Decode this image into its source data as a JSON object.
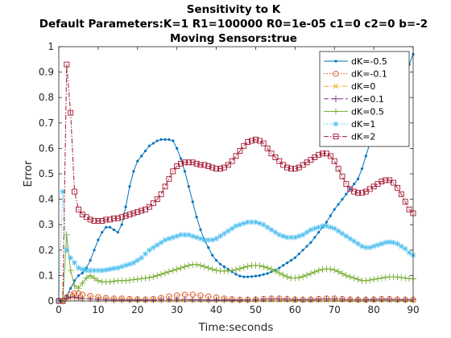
{
  "chart_data": {
    "type": "line",
    "title_lines": [
      "Sensitivity to K",
      "Default Parameters:K=1 R1=100000 R0=1e-05 c1=0 c2=0 b=-2",
      "Moving Sensors:true"
    ],
    "xlabel": "Time:seconds",
    "ylabel": "Error",
    "xlim": [
      0,
      90
    ],
    "ylim": [
      0,
      1
    ],
    "xticks": [
      0,
      10,
      20,
      30,
      40,
      50,
      60,
      70,
      80,
      90
    ],
    "yticks": [
      0,
      0.1,
      0.2,
      0.3,
      0.4,
      0.5,
      0.6,
      0.7,
      0.8,
      0.9,
      1
    ],
    "ytick_labels": [
      "0",
      "0.1",
      "0.2",
      "0.3",
      "0.4",
      "0.5",
      "0.6",
      "0.7",
      "0.8",
      "0.9",
      "1"
    ],
    "grid": false,
    "legend_position": "top-right",
    "series": [
      {
        "name": "dK=-0.5",
        "color": "#0072BD",
        "dash": "solid",
        "marker": "dot",
        "x": [
          0,
          1,
          2,
          3,
          4,
          5,
          6,
          7,
          8,
          9,
          10,
          11,
          12,
          13,
          14,
          15,
          16,
          17,
          18,
          19,
          20,
          21,
          22,
          23,
          24,
          25,
          26,
          27,
          28,
          29,
          30,
          31,
          32,
          33,
          34,
          35,
          36,
          37,
          38,
          39,
          40,
          41,
          42,
          43,
          44,
          45,
          46,
          47,
          48,
          49,
          50,
          51,
          52,
          53,
          54,
          55,
          56,
          57,
          58,
          59,
          60,
          61,
          62,
          63,
          64,
          65,
          66,
          67,
          68,
          69,
          70,
          71,
          72,
          73,
          74,
          75,
          76,
          77,
          78,
          79,
          80,
          81,
          82,
          83,
          84,
          85,
          86,
          87,
          88,
          89,
          90
        ],
        "y": [
          0,
          0,
          0.02,
          0.05,
          0.08,
          0.1,
          0.11,
          0.13,
          0.16,
          0.2,
          0.24,
          0.27,
          0.29,
          0.29,
          0.28,
          0.27,
          0.3,
          0.37,
          0.45,
          0.51,
          0.55,
          0.57,
          0.59,
          0.61,
          0.62,
          0.63,
          0.635,
          0.635,
          0.635,
          0.63,
          0.6,
          0.56,
          0.51,
          0.45,
          0.39,
          0.33,
          0.28,
          0.24,
          0.21,
          0.18,
          0.16,
          0.145,
          0.135,
          0.125,
          0.115,
          0.105,
          0.098,
          0.095,
          0.095,
          0.096,
          0.098,
          0.1,
          0.104,
          0.108,
          0.115,
          0.12,
          0.13,
          0.14,
          0.15,
          0.16,
          0.17,
          0.185,
          0.2,
          0.215,
          0.23,
          0.25,
          0.27,
          0.29,
          0.31,
          0.335,
          0.36,
          0.38,
          0.4,
          0.42,
          0.44,
          0.46,
          0.48,
          0.52,
          0.57,
          0.62,
          0.67,
          0.72,
          0.76,
          0.78,
          0.8,
          0.81,
          0.82,
          0.84,
          0.88,
          0.93,
          0.97
        ]
      },
      {
        "name": "dK=-0.1",
        "color": "#D95319",
        "dash": "dot",
        "marker": "circle",
        "x": [
          0,
          1,
          2,
          3,
          4,
          5,
          6,
          8,
          10,
          12,
          14,
          16,
          18,
          20,
          22,
          24,
          26,
          28,
          30,
          32,
          34,
          36,
          38,
          40,
          42,
          44,
          46,
          48,
          50,
          52,
          54,
          56,
          58,
          60,
          62,
          64,
          66,
          68,
          70,
          72,
          74,
          76,
          78,
          80,
          82,
          84,
          86,
          88,
          90
        ],
        "y": [
          0,
          0,
          0.015,
          0.025,
          0.03,
          0.03,
          0.025,
          0.02,
          0.015,
          0.012,
          0.01,
          0.01,
          0.008,
          0.007,
          0.006,
          0.008,
          0.012,
          0.018,
          0.022,
          0.025,
          0.025,
          0.022,
          0.018,
          0.014,
          0.01,
          0.007,
          0.005,
          0.005,
          0.006,
          0.008,
          0.01,
          0.01,
          0.008,
          0.006,
          0.005,
          0.006,
          0.008,
          0.01,
          0.01,
          0.008,
          0.006,
          0.005,
          0.005,
          0.006,
          0.008,
          0.008,
          0.006,
          0.005,
          0.005
        ]
      },
      {
        "name": "dK=0",
        "color": "#EDB120",
        "dash": "dashdot",
        "marker": "x",
        "x": [
          0,
          1,
          2,
          3,
          4,
          5,
          6,
          8,
          10,
          12,
          14,
          16,
          18,
          20,
          22,
          24,
          26,
          28,
          30,
          32,
          34,
          36,
          38,
          40,
          42,
          44,
          46,
          48,
          50,
          52,
          54,
          56,
          58,
          60,
          62,
          64,
          66,
          68,
          70,
          72,
          74,
          76,
          78,
          80,
          82,
          84,
          86,
          88,
          90
        ],
        "y": [
          0,
          0,
          0.01,
          0.015,
          0.015,
          0.012,
          0.01,
          0.008,
          0.006,
          0.005,
          0.004,
          0.004,
          0.004,
          0.003,
          0.003,
          0.003,
          0.003,
          0.003,
          0.003,
          0.003,
          0.003,
          0.003,
          0.003,
          0.003,
          0.003,
          0.003,
          0.003,
          0.003,
          0.003,
          0.003,
          0.003,
          0.003,
          0.003,
          0.003,
          0.003,
          0.003,
          0.003,
          0.003,
          0.003,
          0.003,
          0.003,
          0.003,
          0.003,
          0.003,
          0.003,
          0.003,
          0.003,
          0.003,
          0.003
        ]
      },
      {
        "name": "dK=0.1",
        "color": "#7E2F8E",
        "dash": "dash",
        "marker": "plus",
        "x": [
          0,
          1,
          2,
          3,
          4,
          5,
          6,
          8,
          10,
          12,
          14,
          16,
          18,
          20,
          22,
          24,
          26,
          28,
          30,
          32,
          34,
          36,
          38,
          40,
          42,
          44,
          46,
          48,
          50,
          52,
          54,
          56,
          58,
          60,
          62,
          64,
          66,
          68,
          70,
          72,
          74,
          76,
          78,
          80,
          82,
          84,
          86,
          88,
          90
        ],
        "y": [
          0,
          0,
          0.01,
          0.015,
          0.015,
          0.012,
          0.01,
          0.008,
          0.006,
          0.005,
          0.004,
          0.004,
          0.004,
          0.004,
          0.004,
          0.004,
          0.005,
          0.006,
          0.006,
          0.006,
          0.005,
          0.005,
          0.004,
          0.004,
          0.004,
          0.004,
          0.004,
          0.005,
          0.006,
          0.007,
          0.008,
          0.008,
          0.007,
          0.006,
          0.006,
          0.006,
          0.007,
          0.008,
          0.008,
          0.007,
          0.006,
          0.006,
          0.006,
          0.006,
          0.007,
          0.007,
          0.006,
          0.006,
          0.006
        ]
      },
      {
        "name": "dK=0.5",
        "color": "#77AC30",
        "dash": "solid",
        "marker": "plus",
        "x": [
          0,
          1,
          2,
          3,
          4,
          5,
          6,
          7,
          8,
          9,
          10,
          11,
          12,
          13,
          14,
          15,
          16,
          17,
          18,
          19,
          20,
          21,
          22,
          23,
          24,
          25,
          26,
          27,
          28,
          29,
          30,
          31,
          32,
          33,
          34,
          35,
          36,
          37,
          38,
          39,
          40,
          41,
          42,
          43,
          44,
          45,
          46,
          47,
          48,
          49,
          50,
          51,
          52,
          53,
          54,
          55,
          56,
          57,
          58,
          59,
          60,
          61,
          62,
          63,
          64,
          65,
          66,
          67,
          68,
          69,
          70,
          71,
          72,
          73,
          74,
          75,
          76,
          77,
          78,
          79,
          80,
          81,
          82,
          83,
          84,
          85,
          86,
          87,
          88,
          89,
          90
        ],
        "y": [
          0,
          0,
          0.26,
          0.12,
          0.06,
          0.05,
          0.07,
          0.09,
          0.1,
          0.09,
          0.08,
          0.075,
          0.075,
          0.075,
          0.078,
          0.08,
          0.08,
          0.08,
          0.082,
          0.084,
          0.086,
          0.088,
          0.09,
          0.092,
          0.095,
          0.1,
          0.105,
          0.11,
          0.115,
          0.12,
          0.125,
          0.13,
          0.135,
          0.14,
          0.143,
          0.143,
          0.14,
          0.135,
          0.13,
          0.125,
          0.12,
          0.118,
          0.118,
          0.118,
          0.12,
          0.123,
          0.127,
          0.132,
          0.136,
          0.139,
          0.14,
          0.139,
          0.135,
          0.13,
          0.125,
          0.118,
          0.11,
          0.102,
          0.095,
          0.09,
          0.09,
          0.092,
          0.096,
          0.102,
          0.108,
          0.114,
          0.12,
          0.124,
          0.126,
          0.125,
          0.122,
          0.115,
          0.108,
          0.1,
          0.095,
          0.09,
          0.085,
          0.08,
          0.08,
          0.082,
          0.085,
          0.088,
          0.09,
          0.093,
          0.095,
          0.095,
          0.094,
          0.092,
          0.09,
          0.088,
          0.087
        ]
      },
      {
        "name": "dK=1",
        "color": "#4DBEEE",
        "dash": "dot",
        "marker": "star",
        "x": [
          0,
          1,
          2,
          3,
          4,
          5,
          6,
          7,
          8,
          9,
          10,
          11,
          12,
          13,
          14,
          15,
          16,
          17,
          18,
          19,
          20,
          21,
          22,
          23,
          24,
          25,
          26,
          27,
          28,
          29,
          30,
          31,
          32,
          33,
          34,
          35,
          36,
          37,
          38,
          39,
          40,
          41,
          42,
          43,
          44,
          45,
          46,
          47,
          48,
          49,
          50,
          51,
          52,
          53,
          54,
          55,
          56,
          57,
          58,
          59,
          60,
          61,
          62,
          63,
          64,
          65,
          66,
          67,
          68,
          69,
          70,
          71,
          72,
          73,
          74,
          75,
          76,
          77,
          78,
          79,
          80,
          81,
          82,
          83,
          84,
          85,
          86,
          87,
          88,
          89,
          90
        ],
        "y": [
          0,
          0.43,
          0.2,
          0.17,
          0.15,
          0.13,
          0.125,
          0.12,
          0.12,
          0.12,
          0.12,
          0.12,
          0.122,
          0.125,
          0.128,
          0.13,
          0.135,
          0.14,
          0.145,
          0.15,
          0.16,
          0.17,
          0.185,
          0.2,
          0.21,
          0.22,
          0.23,
          0.24,
          0.245,
          0.25,
          0.255,
          0.26,
          0.26,
          0.26,
          0.255,
          0.25,
          0.245,
          0.24,
          0.24,
          0.24,
          0.245,
          0.255,
          0.265,
          0.275,
          0.285,
          0.295,
          0.3,
          0.305,
          0.31,
          0.31,
          0.31,
          0.305,
          0.3,
          0.29,
          0.28,
          0.27,
          0.26,
          0.255,
          0.25,
          0.25,
          0.25,
          0.255,
          0.26,
          0.27,
          0.28,
          0.285,
          0.29,
          0.295,
          0.295,
          0.29,
          0.285,
          0.275,
          0.265,
          0.255,
          0.245,
          0.235,
          0.225,
          0.215,
          0.21,
          0.21,
          0.215,
          0.22,
          0.225,
          0.23,
          0.232,
          0.23,
          0.225,
          0.215,
          0.205,
          0.19,
          0.18
        ]
      },
      {
        "name": "dK=2",
        "color": "#A2142F",
        "dash": "dashdot",
        "marker": "square",
        "x": [
          0,
          1,
          2,
          3,
          4,
          5,
          6,
          7,
          8,
          9,
          10,
          11,
          12,
          13,
          14,
          15,
          16,
          17,
          18,
          19,
          20,
          21,
          22,
          23,
          24,
          25,
          26,
          27,
          28,
          29,
          30,
          31,
          32,
          33,
          34,
          35,
          36,
          37,
          38,
          39,
          40,
          41,
          42,
          43,
          44,
          45,
          46,
          47,
          48,
          49,
          50,
          51,
          52,
          53,
          54,
          55,
          56,
          57,
          58,
          59,
          60,
          61,
          62,
          63,
          64,
          65,
          66,
          67,
          68,
          69,
          70,
          71,
          72,
          73,
          74,
          75,
          76,
          77,
          78,
          79,
          80,
          81,
          82,
          83,
          84,
          85,
          86,
          87,
          88,
          89,
          90
        ],
        "y": [
          0,
          0,
          0.93,
          0.74,
          0.43,
          0.36,
          0.34,
          0.33,
          0.32,
          0.315,
          0.315,
          0.315,
          0.32,
          0.32,
          0.325,
          0.325,
          0.33,
          0.335,
          0.34,
          0.345,
          0.35,
          0.355,
          0.36,
          0.37,
          0.385,
          0.4,
          0.42,
          0.45,
          0.48,
          0.51,
          0.53,
          0.54,
          0.545,
          0.545,
          0.545,
          0.54,
          0.535,
          0.535,
          0.53,
          0.525,
          0.52,
          0.52,
          0.525,
          0.535,
          0.55,
          0.57,
          0.59,
          0.61,
          0.625,
          0.63,
          0.635,
          0.63,
          0.62,
          0.6,
          0.58,
          0.565,
          0.55,
          0.535,
          0.525,
          0.52,
          0.52,
          0.525,
          0.535,
          0.545,
          0.555,
          0.565,
          0.575,
          0.58,
          0.58,
          0.57,
          0.55,
          0.52,
          0.49,
          0.46,
          0.44,
          0.43,
          0.425,
          0.425,
          0.43,
          0.44,
          0.45,
          0.46,
          0.47,
          0.475,
          0.475,
          0.465,
          0.445,
          0.42,
          0.39,
          0.36,
          0.345
        ]
      }
    ]
  }
}
